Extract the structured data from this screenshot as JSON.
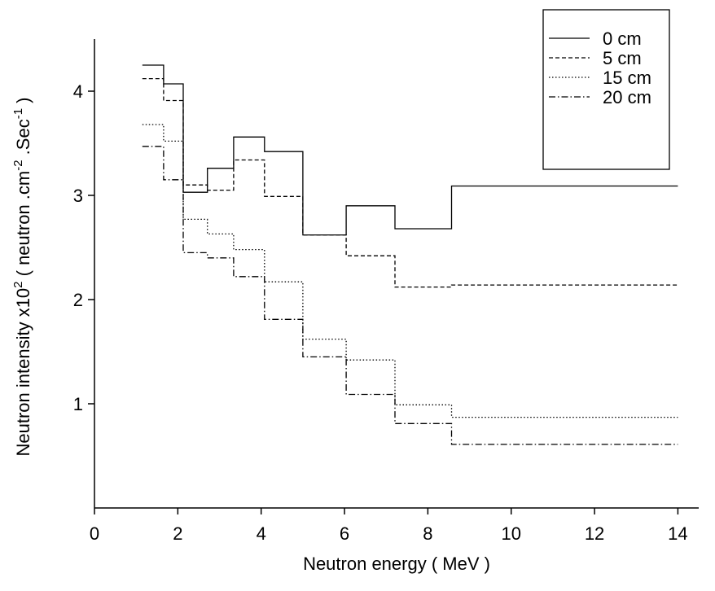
{
  "chart_data": {
    "type": "step",
    "x_label": "Neutron energy ( MeV )",
    "y_label": [
      "Neutron intensity x10",
      "2",
      " ( neutron .cm",
      "-2",
      " .Sec",
      "-1",
      " )"
    ],
    "x": [
      1.15,
      1.66,
      2.13,
      2.71,
      3.34,
      4.08,
      5.0,
      6.04,
      7.21,
      8.57,
      14
    ],
    "series": [
      {
        "name": "0 cm",
        "color": "#000000",
        "dash": "solid",
        "values": [
          4.25,
          4.07,
          3.03,
          3.26,
          3.56,
          3.42,
          2.62,
          2.9,
          2.68,
          3.09,
          3.09
        ]
      },
      {
        "name": "5 cm",
        "color": "#000000",
        "dash": "dashed",
        "values": [
          4.12,
          3.91,
          3.1,
          3.05,
          3.34,
          2.99,
          2.62,
          2.42,
          2.12,
          2.14,
          2.14
        ]
      },
      {
        "name": "15 cm",
        "color": "#000000",
        "dash": "dotted",
        "values": [
          3.68,
          3.52,
          2.77,
          2.63,
          2.48,
          2.17,
          1.62,
          1.42,
          0.99,
          0.87,
          0.87
        ]
      },
      {
        "name": "20 cm",
        "color": "#000000",
        "dash": "dashdot",
        "values": [
          3.47,
          3.15,
          2.45,
          2.4,
          2.22,
          1.81,
          1.45,
          1.09,
          0.81,
          0.61,
          0.61
        ]
      }
    ],
    "xlim": [
      0,
      14.5
    ],
    "ylim": [
      0,
      4.5
    ],
    "xticks": [
      0,
      2,
      4,
      6,
      8,
      10,
      12,
      14
    ],
    "yticks": [
      1,
      2,
      3,
      4
    ],
    "legend": "upper-right"
  }
}
